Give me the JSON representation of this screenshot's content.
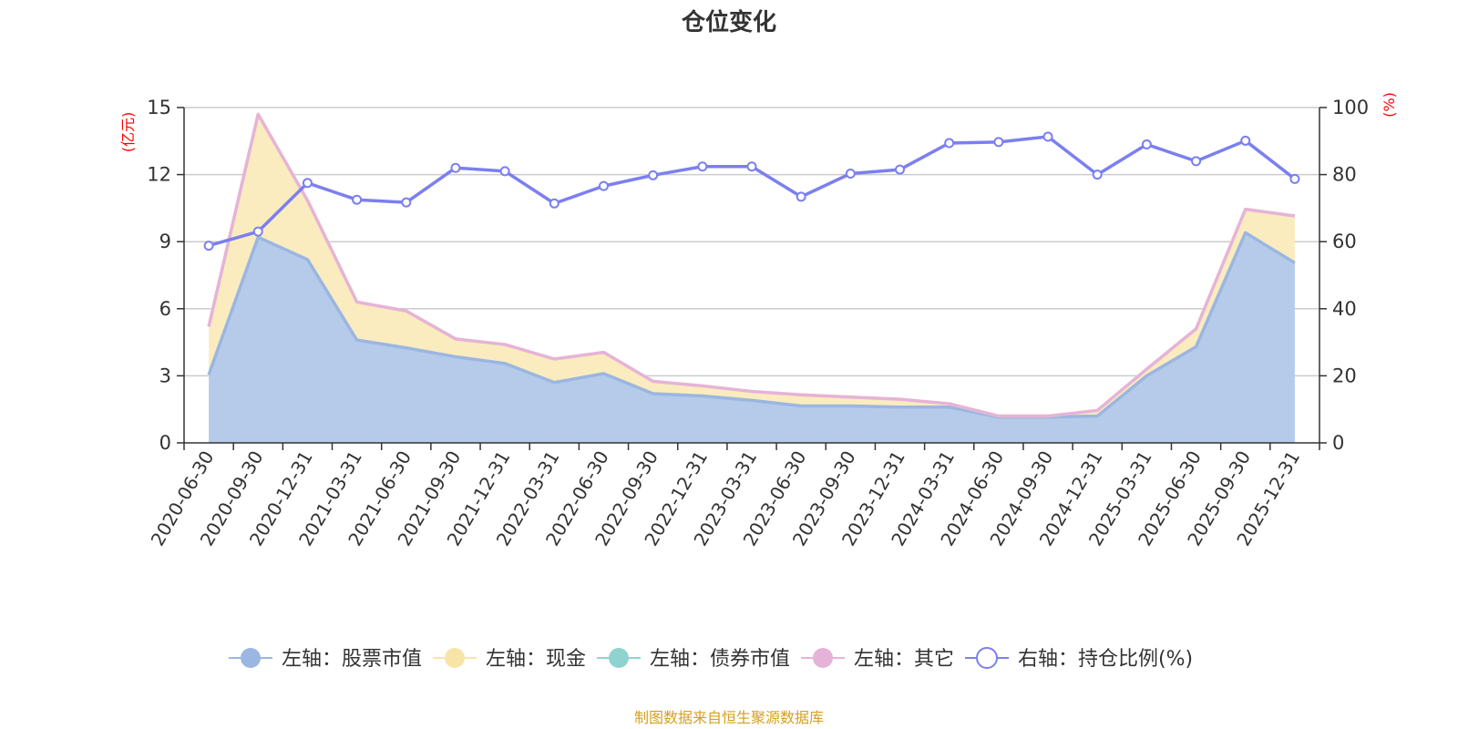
{
  "chart_data": {
    "type": "area",
    "title": "仓位变化",
    "left_axis": {
      "unit_label": "(亿元)",
      "ylim": [
        0,
        15
      ],
      "ticks": [
        0,
        3,
        6,
        9,
        12,
        15
      ]
    },
    "right_axis": {
      "unit_label": "(%)",
      "ylim": [
        0,
        100
      ],
      "ticks": [
        0,
        20,
        40,
        60,
        80,
        100
      ]
    },
    "categories": [
      "2020-06-30",
      "2020-09-30",
      "2020-12-31",
      "2021-03-31",
      "2021-06-30",
      "2021-09-30",
      "2021-12-31",
      "2022-03-31",
      "2022-06-30",
      "2022-09-30",
      "2022-12-31",
      "2023-03-31",
      "2023-06-30",
      "2023-09-30",
      "2023-12-31",
      "2024-03-31",
      "2024-06-30",
      "2024-09-30",
      "2024-12-31",
      "2025-03-31",
      "2025-06-30",
      "2025-09-30",
      "2025-12-31"
    ],
    "series": [
      {
        "name": "左轴：股票市值",
        "axis": "left",
        "kind": "stack-area",
        "color": "#9bb6e0",
        "fill": "#b6cbea",
        "values": [
          3.05,
          9.2,
          8.2,
          4.6,
          4.25,
          3.85,
          3.55,
          2.7,
          3.1,
          2.2,
          2.1,
          1.9,
          1.65,
          1.65,
          1.6,
          1.6,
          1.15,
          1.15,
          1.2,
          3.0,
          4.3,
          9.4,
          8.05
        ]
      },
      {
        "name": "左轴：现金",
        "axis": "left",
        "kind": "stack-area",
        "color": "#f7e5a8",
        "fill": "#faecbe",
        "values": [
          2.15,
          5.5,
          2.65,
          1.7,
          1.65,
          0.8,
          0.85,
          1.05,
          0.95,
          0.55,
          0.45,
          0.4,
          0.5,
          0.4,
          0.35,
          0.15,
          0.05,
          0.05,
          0.25,
          0.3,
          0.8,
          1.05,
          2.1
        ]
      },
      {
        "name": "左轴：债券市值",
        "axis": "left",
        "kind": "stack-area",
        "color": "#8fd3d0",
        "fill": "#8fd3d0",
        "values": [
          0,
          0,
          0,
          0,
          0,
          0,
          0,
          0,
          0,
          0,
          0,
          0,
          0,
          0,
          0,
          0,
          0,
          0,
          0,
          0,
          0,
          0,
          0
        ]
      },
      {
        "name": "左轴：其它",
        "axis": "left",
        "kind": "stack-area",
        "color": "#e6b3d8",
        "fill": "#e6b3d8",
        "values": [
          0,
          0,
          0,
          0,
          0,
          0,
          0,
          0,
          0,
          0,
          0,
          0,
          0,
          0,
          0,
          0,
          0,
          0,
          0,
          0,
          0,
          0,
          0
        ]
      },
      {
        "name": "右轴：持仓比例(%)",
        "axis": "right",
        "kind": "line",
        "color": "#7b7ff0",
        "values": [
          58.8,
          63.0,
          77.5,
          72.5,
          71.7,
          82.0,
          81.0,
          71.4,
          76.6,
          79.8,
          82.4,
          82.4,
          73.4,
          80.3,
          81.5,
          89.4,
          89.7,
          91.3,
          80.0,
          89.0,
          84.0,
          90.1,
          78.7
        ]
      }
    ],
    "legend_position": "bottom-center",
    "source_note": "制图数据来自恒生聚源数据库",
    "colors": {
      "unit_label": "#ff0000",
      "source_note": "#d4a020",
      "line": "#7b7ff0"
    }
  }
}
